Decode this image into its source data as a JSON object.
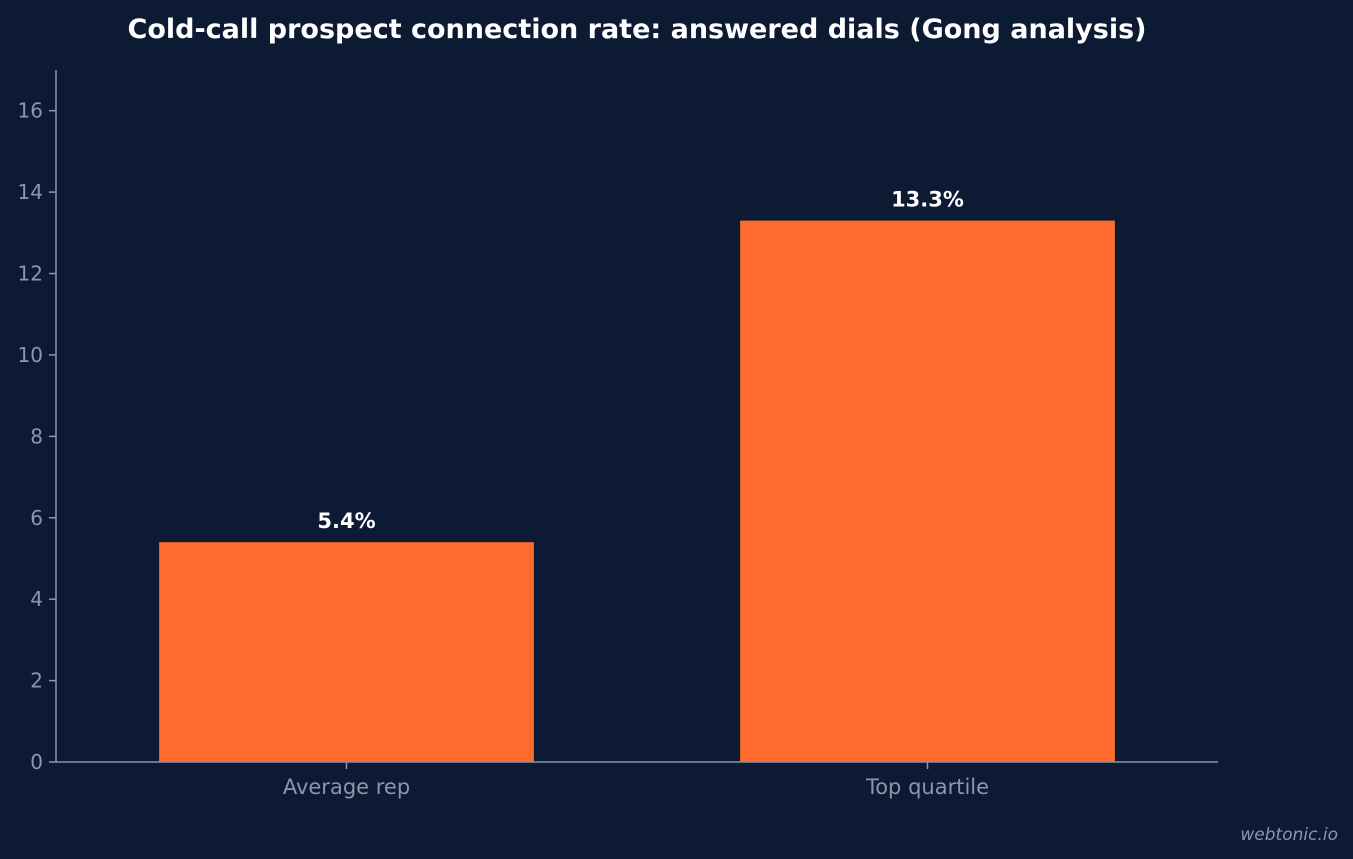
{
  "chart_data": {
    "type": "bar",
    "title": "Cold-call prospect connection rate: answered dials (Gong analysis)",
    "xlabel": "",
    "ylabel": "",
    "categories": [
      "Average rep",
      "Top quartile"
    ],
    "values": [
      5.4,
      13.3
    ],
    "data_labels": [
      "5.4%",
      "13.3%"
    ],
    "ylim": [
      0,
      17
    ],
    "yticks": [
      0,
      2,
      4,
      6,
      8,
      10,
      12,
      14,
      16
    ],
    "grid": false,
    "legend": "none"
  },
  "watermark": "webtonic.io",
  "colors": {
    "background": "#0c1b33",
    "bar": "#ff6a2f",
    "axis": "#8a97ad",
    "text": "#ffffff"
  }
}
